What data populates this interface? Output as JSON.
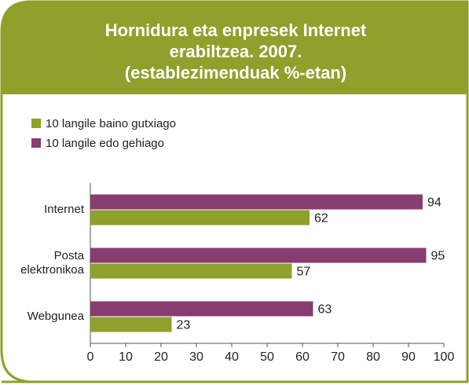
{
  "chart_data": {
    "type": "bar",
    "orientation": "horizontal",
    "title": [
      "Hornidura eta enpresek Internet",
      "erabiltzea. 2007.",
      "(establezimenduak %-etan)"
    ],
    "categories": [
      "Internet",
      "Posta elektronikoa",
      "Webgunea"
    ],
    "series": [
      {
        "name": "10 langile baino gutxiago",
        "color": "#8fa02b",
        "values": [
          62,
          57,
          23
        ]
      },
      {
        "name": "10 langile edo gehiago",
        "color": "#873d6f",
        "values": [
          94,
          95,
          63
        ]
      }
    ],
    "xlim": [
      0,
      100
    ],
    "xticks": [
      0,
      10,
      20,
      30,
      40,
      50,
      60,
      70,
      80,
      90,
      100
    ],
    "legend": "top-left",
    "grid": false
  }
}
